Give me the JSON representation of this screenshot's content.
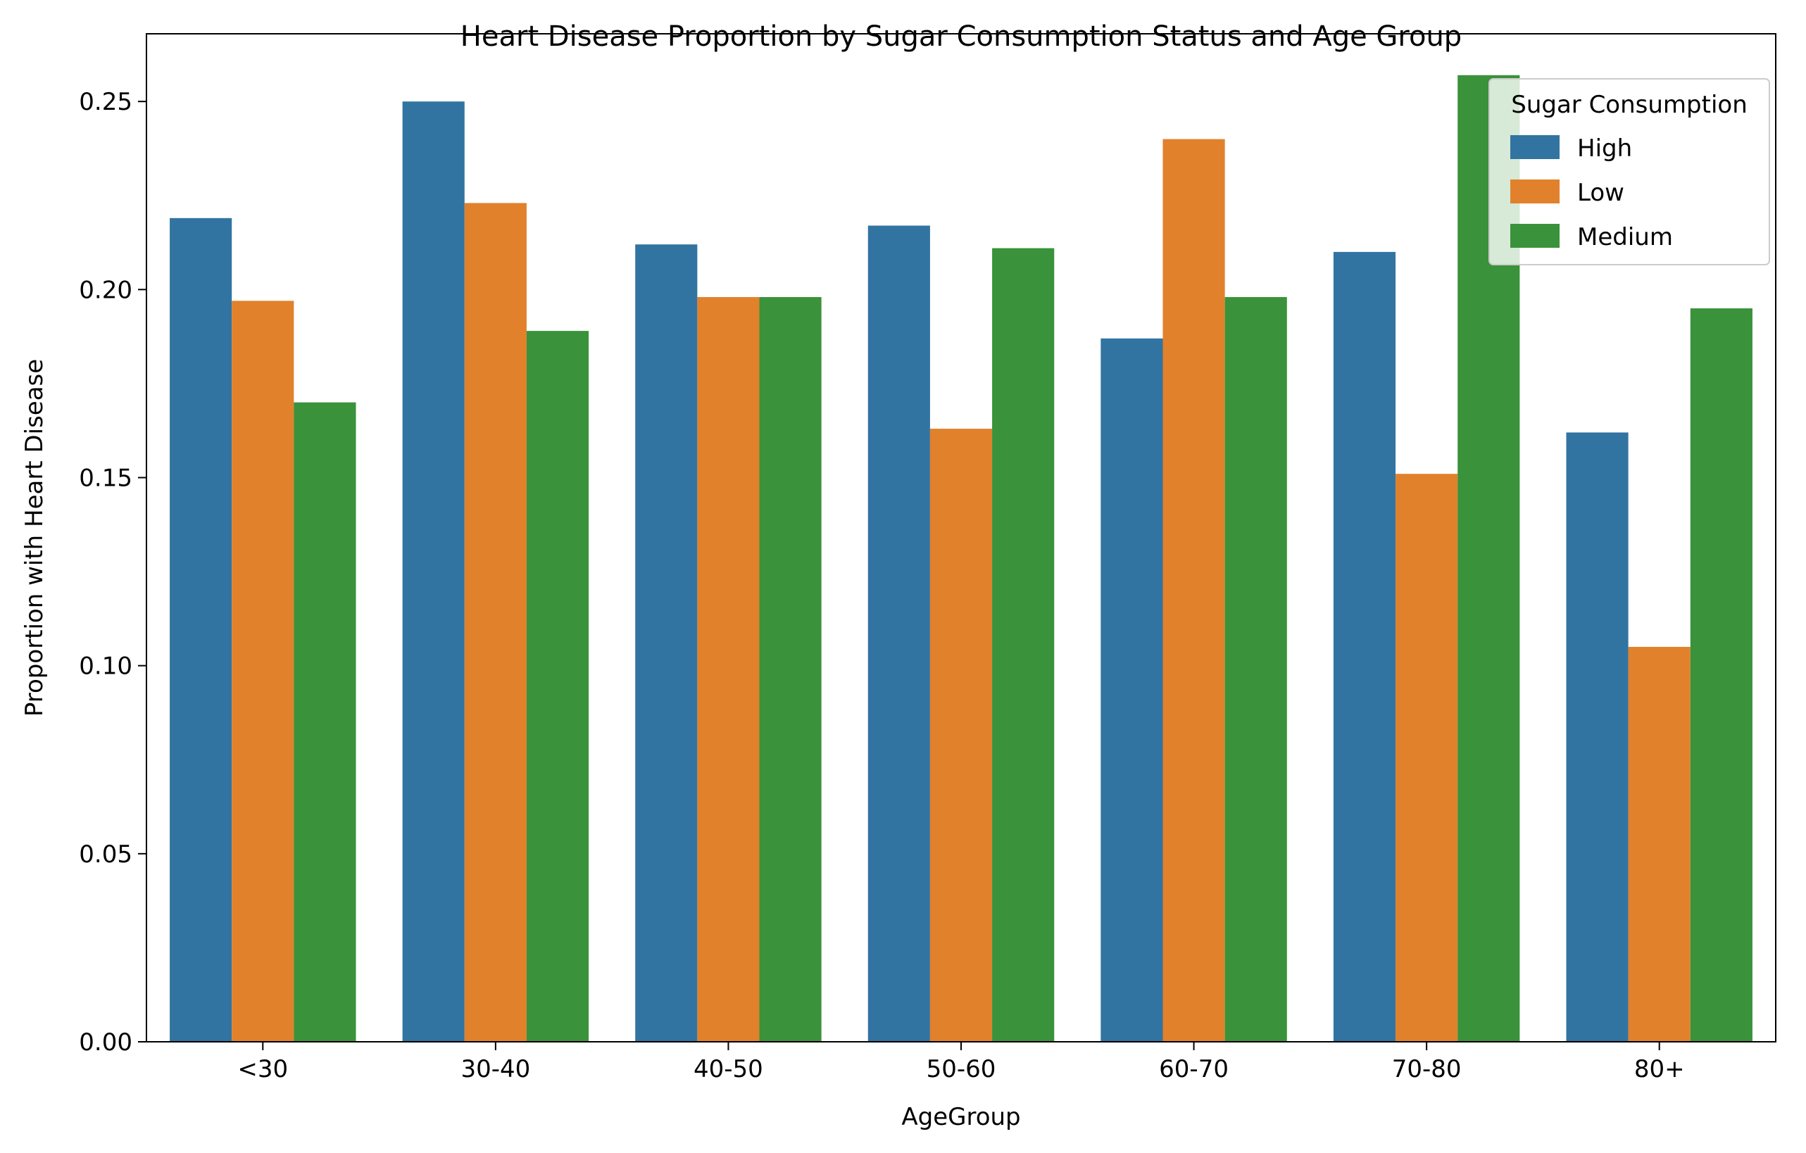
{
  "chart_data": {
    "type": "bar",
    "title": "Heart Disease Proportion by Sugar Consumption Status and Age Group",
    "xlabel": "AgeGroup",
    "ylabel": "Proportion with Heart Disease",
    "ylim": [
      0,
      0.268
    ],
    "yticks": [
      0.0,
      0.05,
      0.1,
      0.15,
      0.2,
      0.25
    ],
    "ytick_labels": [
      "0.00",
      "0.05",
      "0.10",
      "0.15",
      "0.20",
      "0.25"
    ],
    "categories": [
      "<30",
      "30-40",
      "40-50",
      "50-60",
      "60-70",
      "70-80",
      "80+"
    ],
    "grid": false,
    "legend": {
      "title": "Sugar Consumption",
      "placement": "top-right"
    },
    "series": [
      {
        "name": "High",
        "color": "#3274a1",
        "values": [
          0.219,
          0.25,
          0.212,
          0.217,
          0.187,
          0.21,
          0.162
        ]
      },
      {
        "name": "Low",
        "color": "#e1812c",
        "values": [
          0.197,
          0.223,
          0.198,
          0.163,
          0.24,
          0.151,
          0.105
        ]
      },
      {
        "name": "Medium",
        "color": "#3a923a",
        "values": [
          0.17,
          0.189,
          0.198,
          0.211,
          0.198,
          0.257,
          0.195
        ]
      }
    ]
  }
}
